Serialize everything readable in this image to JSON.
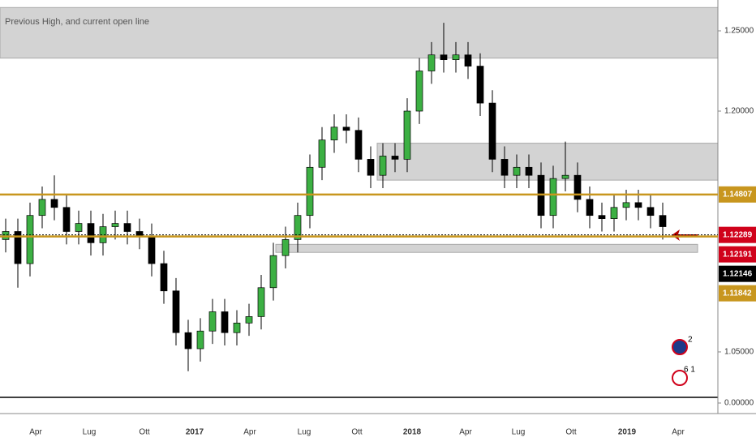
{
  "chart_data": {
    "type": "candlestick",
    "title": "Previous High, and current open line",
    "time_labels": [
      "Apr",
      "Lug",
      "Ott",
      "2017",
      "Apr",
      "Lug",
      "Ott",
      "2018",
      "Apr",
      "Lug",
      "Ott",
      "2019",
      "Apr"
    ],
    "open": [
      1.12,
      1.125,
      1.105,
      1.135,
      1.145,
      1.14,
      1.125,
      1.13,
      1.118,
      1.128,
      1.13,
      1.125,
      1.122,
      1.105,
      1.088,
      1.062,
      1.052,
      1.063,
      1.075,
      1.062,
      1.068,
      1.072,
      1.09,
      1.11,
      1.12,
      1.135,
      1.165,
      1.182,
      1.19,
      1.188,
      1.17,
      1.16,
      1.172,
      1.17,
      1.2,
      1.225,
      1.235,
      1.232,
      1.235,
      1.228,
      1.205,
      1.17,
      1.16,
      1.165,
      1.16,
      1.135,
      1.158,
      1.16,
      1.145,
      1.135,
      1.133,
      1.14,
      1.143,
      1.14,
      1.135
    ],
    "high": [
      1.133,
      1.133,
      1.143,
      1.153,
      1.16,
      1.148,
      1.138,
      1.138,
      1.136,
      1.138,
      1.138,
      1.133,
      1.13,
      1.113,
      1.096,
      1.07,
      1.071,
      1.083,
      1.083,
      1.076,
      1.08,
      1.098,
      1.118,
      1.128,
      1.143,
      1.173,
      1.19,
      1.198,
      1.198,
      1.196,
      1.178,
      1.18,
      1.18,
      1.208,
      1.233,
      1.243,
      1.255,
      1.243,
      1.243,
      1.236,
      1.213,
      1.178,
      1.173,
      1.173,
      1.168,
      1.166,
      1.181,
      1.168,
      1.153,
      1.143,
      1.148,
      1.151,
      1.151,
      1.148,
      1.143
    ],
    "low": [
      1.112,
      1.09,
      1.097,
      1.127,
      1.132,
      1.117,
      1.117,
      1.11,
      1.11,
      1.12,
      1.117,
      1.114,
      1.097,
      1.08,
      1.054,
      1.038,
      1.044,
      1.055,
      1.054,
      1.054,
      1.06,
      1.064,
      1.082,
      1.102,
      1.112,
      1.127,
      1.157,
      1.174,
      1.18,
      1.162,
      1.152,
      1.152,
      1.162,
      1.162,
      1.192,
      1.217,
      1.224,
      1.224,
      1.22,
      1.197,
      1.162,
      1.152,
      1.152,
      1.152,
      1.127,
      1.127,
      1.15,
      1.137,
      1.127,
      1.125,
      1.125,
      1.132,
      1.132,
      1.127,
      1.12
    ],
    "close": [
      1.125,
      1.105,
      1.135,
      1.145,
      1.14,
      1.125,
      1.13,
      1.118,
      1.128,
      1.13,
      1.125,
      1.122,
      1.105,
      1.088,
      1.062,
      1.052,
      1.063,
      1.075,
      1.062,
      1.068,
      1.072,
      1.09,
      1.11,
      1.12,
      1.135,
      1.165,
      1.182,
      1.19,
      1.188,
      1.17,
      1.16,
      1.172,
      1.17,
      1.2,
      1.225,
      1.235,
      1.232,
      1.235,
      1.228,
      1.205,
      1.17,
      1.16,
      1.165,
      1.16,
      1.135,
      1.158,
      1.16,
      1.145,
      1.135,
      1.133,
      1.14,
      1.143,
      1.14,
      1.135,
      1.128
    ],
    "up_color": "#3cb043",
    "down_color": "#000000",
    "ylim": [
      1.0217,
      1.2692
    ],
    "yticks": [
      {
        "value": 1.25,
        "label": "1.25000"
      },
      {
        "value": 1.2,
        "label": "1.20000"
      },
      {
        "value": 1.05,
        "label": "1.05000"
      }
    ],
    "lower_yticks": [
      {
        "value": 0,
        "label": "0.00000"
      }
    ],
    "zones": [
      {
        "top": 1.2645,
        "bottom": 1.233
      },
      {
        "top": 1.18,
        "bottom": 1.157
      },
      {
        "top": 1.117,
        "bottom": 1.112
      }
    ],
    "price_markers": [
      {
        "value": 1.14807,
        "label": "1.14807",
        "color": "#c8961e",
        "line": "solid"
      },
      {
        "value": 1.12289,
        "label": "1.12289",
        "color": "#d0021b",
        "line": "dotted"
      },
      {
        "value": 1.12191,
        "label": "1.12191",
        "color": "#d0021b",
        "line": "solid"
      },
      {
        "value": 1.12146,
        "label": "1.12146",
        "color": "#000000"
      },
      {
        "value": 1.11842,
        "label": "1.11842",
        "color": "#c8961e"
      }
    ],
    "badges": [
      "2",
      "6 1"
    ]
  }
}
